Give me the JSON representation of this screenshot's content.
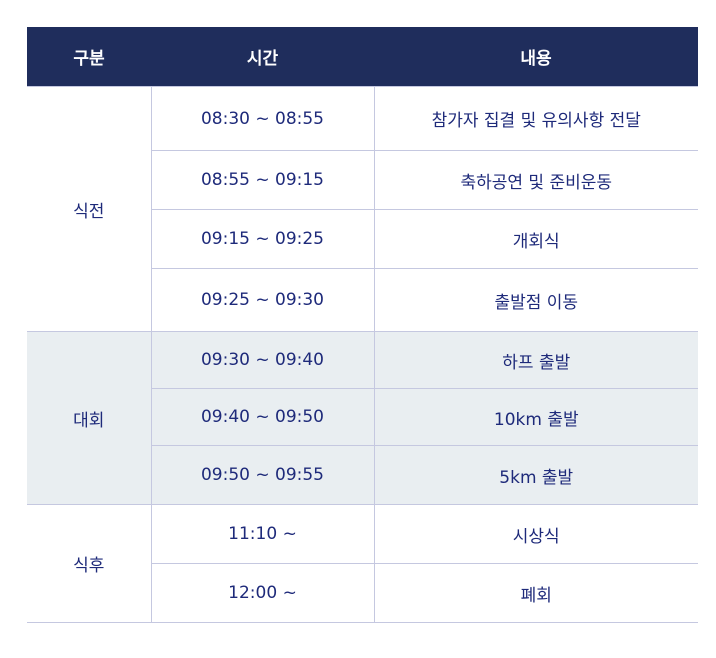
{
  "header": {
    "category": "구분",
    "time": "시간",
    "content": "내용"
  },
  "groups": [
    {
      "name": "식전",
      "highlight": false,
      "rows": [
        {
          "time": "08:30 ~ 08:55",
          "content": "참가자 집결 및 유의사항 전달"
        },
        {
          "time": "08:55 ~ 09:15",
          "content": "축하공연 및 준비운동"
        },
        {
          "time": "09:15 ~ 09:25",
          "content": "개회식"
        },
        {
          "time": "09:25 ~ 09:30",
          "content": "출발점 이동"
        }
      ]
    },
    {
      "name": "대회",
      "highlight": true,
      "rows": [
        {
          "time": "09:30 ~ 09:40",
          "content": "하프 출발"
        },
        {
          "time": "09:40 ~ 09:50",
          "content": "10km 출발"
        },
        {
          "time": "09:50 ~ 09:55",
          "content": "5km 출발"
        }
      ]
    },
    {
      "name": "식후",
      "highlight": false,
      "rows": [
        {
          "time": "11:10 ~",
          "content": "시상식"
        },
        {
          "time": "12:00 ~",
          "content": "폐회"
        }
      ]
    }
  ],
  "colors": {
    "header_bg": "#1f2d5c",
    "text": "#1e2a7a",
    "highlight_bg": "#e9eef1",
    "border": "#c5c8e0"
  }
}
